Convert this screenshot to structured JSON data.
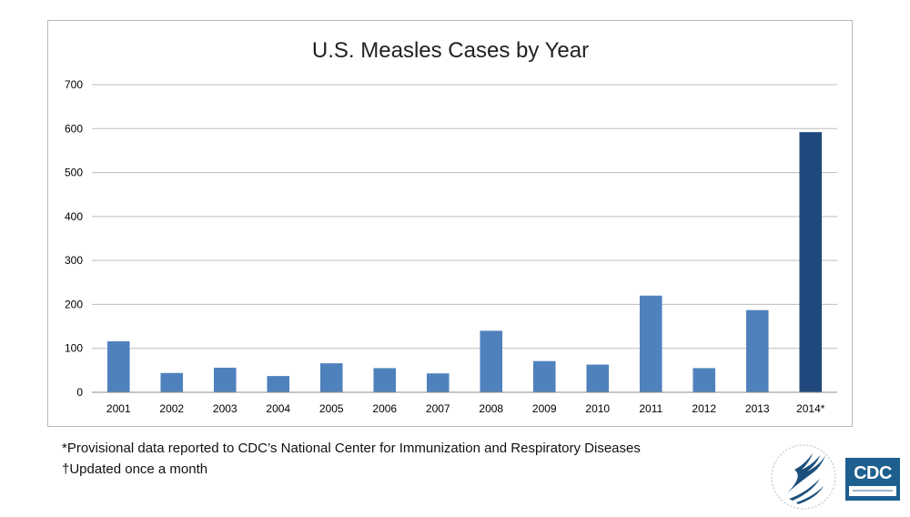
{
  "colors": {
    "bar": "#4f81bd",
    "bar_highlight": "#1f497d",
    "grid": "#bdbdbd",
    "frame": "#b9b9b9",
    "logo_blue": "#1d5f8f"
  },
  "chart_data": {
    "type": "bar",
    "title": "U.S. Measles Cases by Year",
    "xlabel": "",
    "ylabel": "",
    "categories": [
      "2001",
      "2002",
      "2003",
      "2004",
      "2005",
      "2006",
      "2007",
      "2008",
      "2009",
      "2010",
      "2011",
      "2012",
      "2013",
      "2014*"
    ],
    "values": [
      116,
      44,
      56,
      37,
      66,
      55,
      43,
      140,
      71,
      63,
      220,
      55,
      187,
      592
    ],
    "highlight_category": "2014*",
    "ylim": [
      0,
      700
    ],
    "yticks": [
      0,
      100,
      200,
      300,
      400,
      500,
      600,
      700
    ],
    "grid": true,
    "legend": "none"
  },
  "footnotes": [
    "*Provisional data reported to CDC’s National Center for Immunization and Respiratory Diseases",
    "†Updated once a month"
  ],
  "logos": {
    "hhs": "hhs-eagle-seal-icon",
    "cdc": "CDC"
  }
}
